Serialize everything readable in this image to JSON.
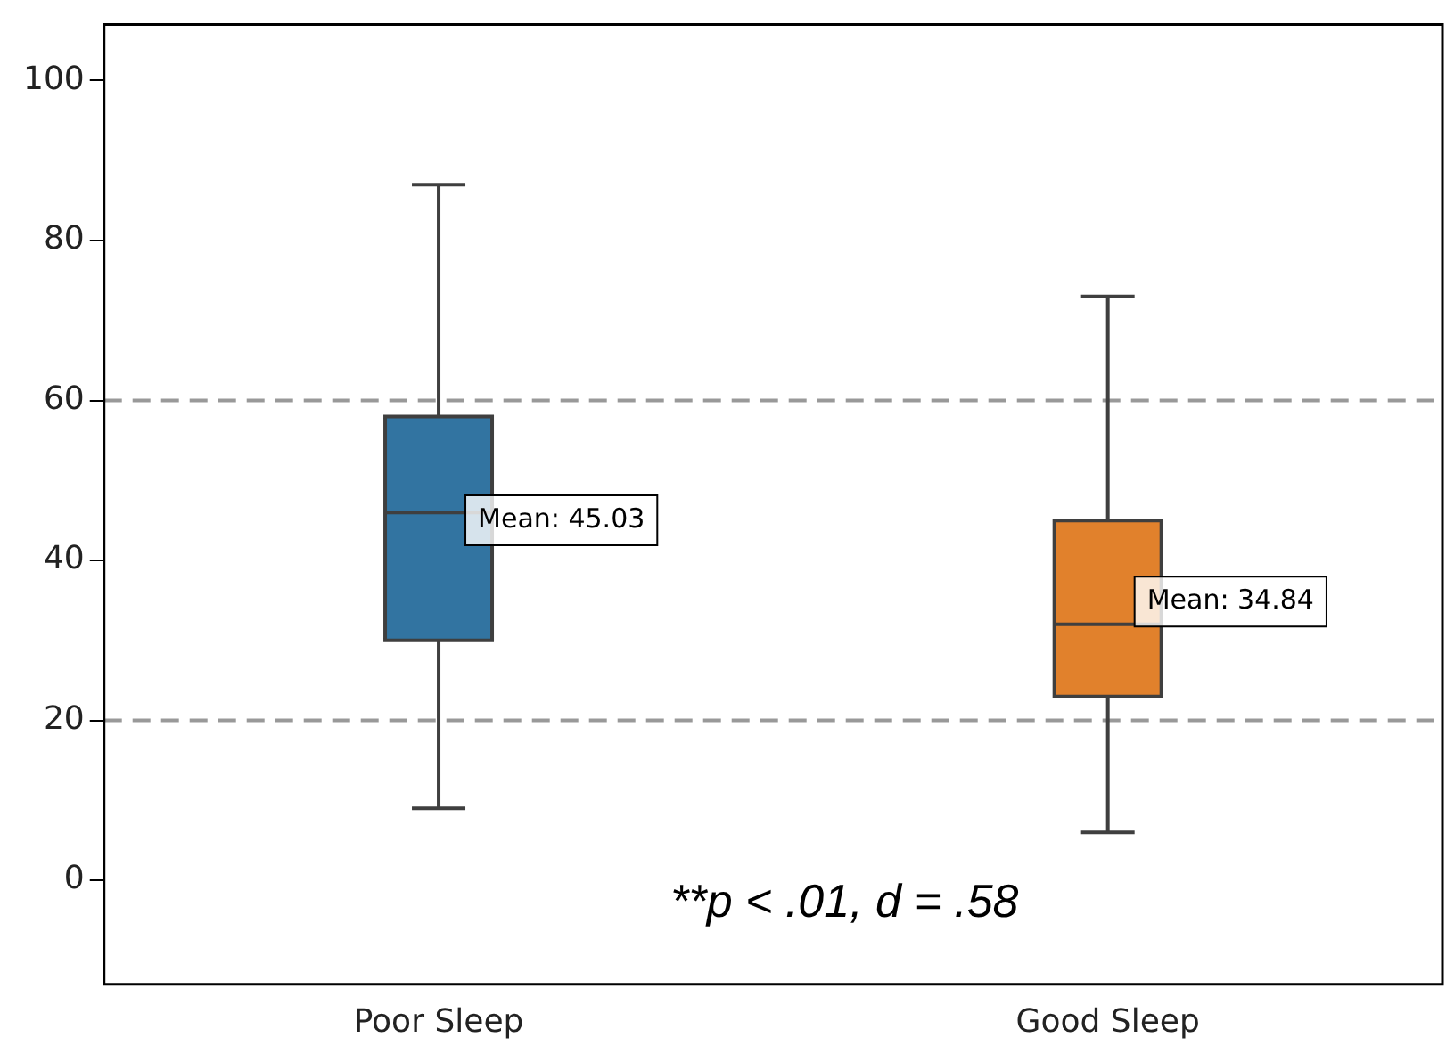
{
  "chart_data": {
    "type": "box",
    "categories": [
      "Poor Sleep",
      "Good Sleep"
    ],
    "colors": [
      "#3274a1",
      "#e1812c"
    ],
    "boxes": [
      {
        "low": 9,
        "q1": 30,
        "median": 46,
        "q3": 58,
        "high": 87
      },
      {
        "low": 6,
        "q1": 23,
        "median": 32,
        "q3": 45,
        "high": 73
      }
    ],
    "ylim": [
      -13,
      107
    ],
    "yticks": [
      0,
      20,
      40,
      60,
      80,
      100
    ],
    "grid": false,
    "legend": false,
    "ref_lines": [
      {
        "axis": "y",
        "value": 20,
        "color": "#999999",
        "line_style": "dashed"
      },
      {
        "axis": "y",
        "value": 60,
        "color": "#999999",
        "line_style": "dashed"
      }
    ],
    "annotations": [
      {
        "text": "Mean: 45.03",
        "x": "Poor Sleep",
        "y": 45.03
      },
      {
        "text": "Mean: 34.84",
        "x": "Good Sleep",
        "y": 34.84
      },
      "**p < .01, d = .58"
    ]
  }
}
